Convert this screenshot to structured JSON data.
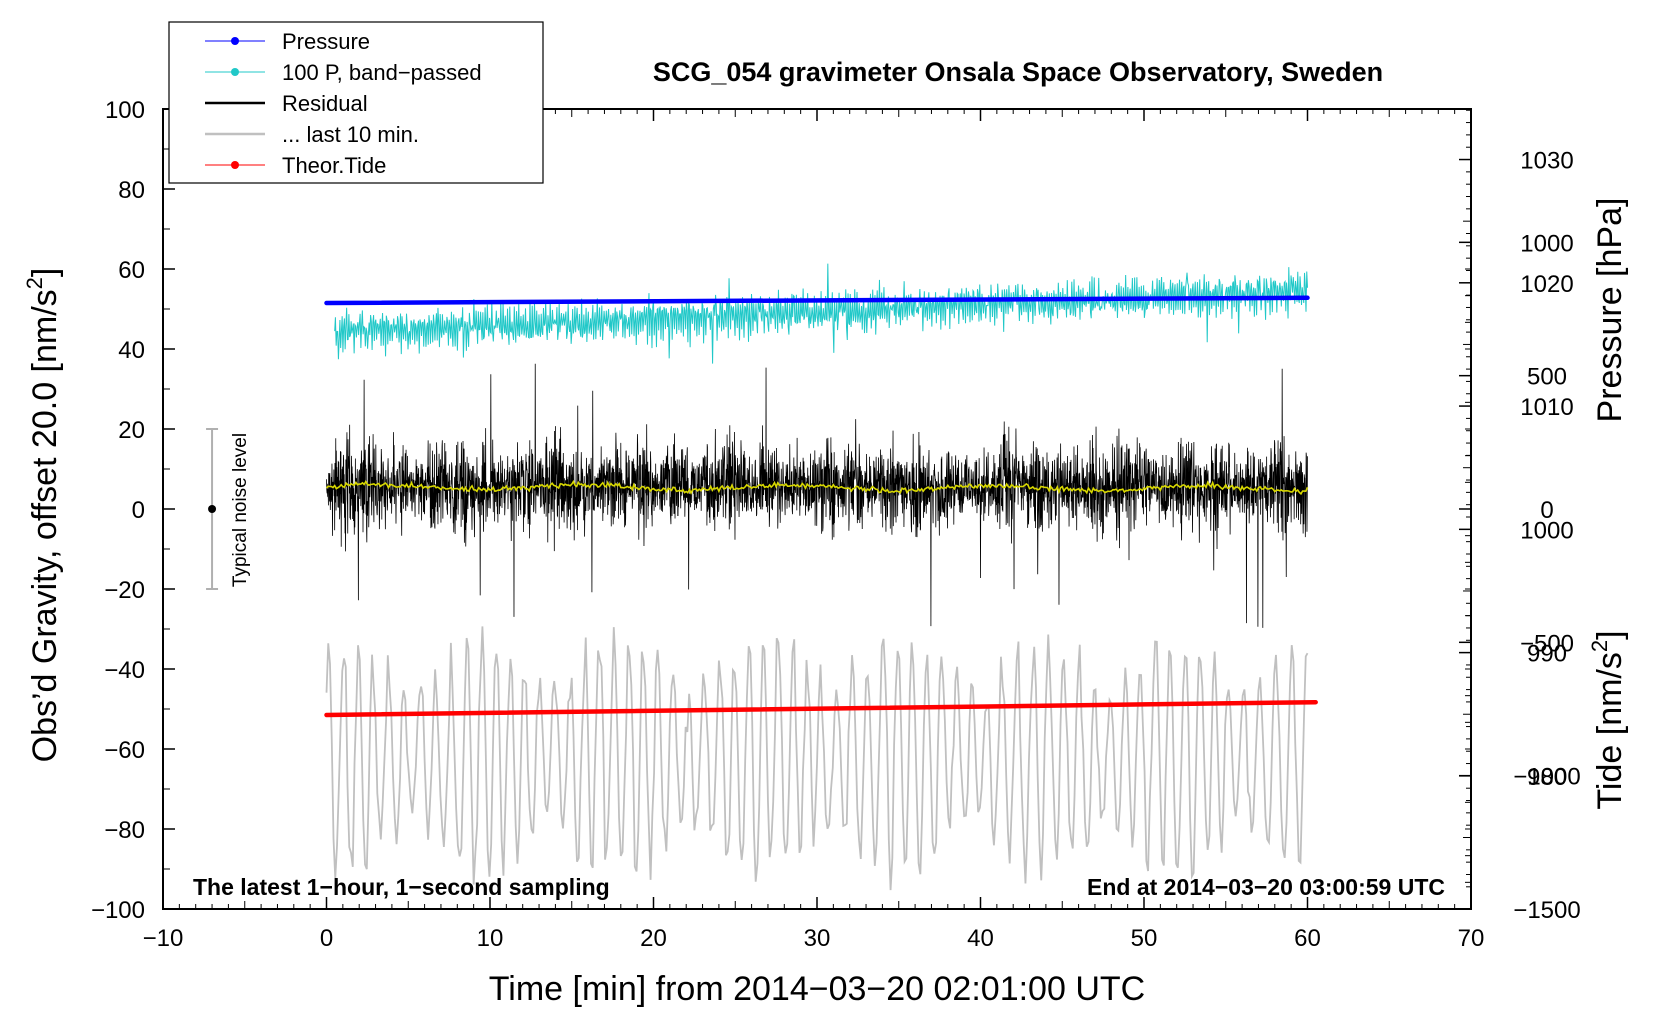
{
  "chart_data": {
    "type": "line",
    "title": "SCG_054 gravimeter Onsala Space Observatory, Sweden",
    "xlabel": "Time [min] from 2014−03−20 02:01:00 UTC",
    "ylabel_left_prefix": "Obs’d Gravity, offset 20.0 [nm/s",
    "ylabel_left_suffix": "]",
    "ylabel_right_top": "Pressure [hPa]",
    "ylabel_right_bottom_prefix": "Tide [nm/s",
    "ylabel_right_bottom_suffix": "]",
    "superscript": "2",
    "xlim": [
      -10,
      70
    ],
    "ylim": [
      -100,
      100
    ],
    "pressure_axis_range": [
      969.2,
      1034.1
    ],
    "tide_axis_range": [
      -1500,
      1500
    ],
    "x_ticks": [
      {
        "v": -10,
        "t": "−10"
      },
      {
        "v": 0,
        "t": "0"
      },
      {
        "v": 10,
        "t": "10"
      },
      {
        "v": 20,
        "t": "20"
      },
      {
        "v": 30,
        "t": "30"
      },
      {
        "v": 40,
        "t": "40"
      },
      {
        "v": 50,
        "t": "50"
      },
      {
        "v": 60,
        "t": "60"
      },
      {
        "v": 70,
        "t": "70"
      }
    ],
    "y_ticks": [
      {
        "v": 100,
        "t": "100"
      },
      {
        "v": 80,
        "t": "80"
      },
      {
        "v": 60,
        "t": "60"
      },
      {
        "v": 40,
        "t": "40"
      },
      {
        "v": 20,
        "t": "20"
      },
      {
        "v": 0,
        "t": "0"
      },
      {
        "v": -20,
        "t": "−20"
      },
      {
        "v": -40,
        "t": "−40"
      },
      {
        "v": -60,
        "t": "−60"
      },
      {
        "v": -80,
        "t": "−80"
      },
      {
        "v": -100,
        "t": "−100"
      }
    ],
    "pressure_ticks": [
      {
        "v": 1030,
        "t": "1030"
      },
      {
        "v": 1020,
        "t": "1020"
      },
      {
        "v": 1010,
        "t": "1010"
      },
      {
        "v": 1000,
        "t": "1000"
      },
      {
        "v": 990,
        "t": "990"
      },
      {
        "v": 980,
        "t": "980"
      }
    ],
    "tide_ticks": [
      {
        "v": 1000,
        "t": "1000"
      },
      {
        "v": 500,
        "t": "500"
      },
      {
        "v": 0,
        "t": "0"
      },
      {
        "v": -500,
        "t": "−500"
      },
      {
        "v": -1000,
        "t": "−1000"
      },
      {
        "v": -1500,
        "t": "−1500"
      }
    ],
    "annotation_left": "The latest 1−hour, 1−second sampling",
    "annotation_right": "End at 2014−03−20 03:00:59 UTC",
    "noise_label": "Typical noise level",
    "noise_bar": {
      "x": -7,
      "y": 0,
      "low": -20,
      "high": 20
    },
    "legend_position": "top-left",
    "legend": [
      {
        "label": "Pressure",
        "color": "#0000ff",
        "marker": true
      },
      {
        "label": "100 P, band−passed",
        "color": "#20c8c8",
        "marker": true
      },
      {
        "label": "Residual",
        "color": "#000000",
        "marker": false
      },
      {
        "label": "... last 10 min.",
        "color": "#c0c0c0",
        "marker": false
      },
      {
        "label": "Theor.Tide",
        "color": "#ff0000",
        "marker": true
      }
    ],
    "series": [
      {
        "name": "Pressure",
        "axis": "left_equivalent",
        "color": "#0000ff",
        "x": [
          0,
          60
        ],
        "y": [
          51.5,
          52.8
        ]
      },
      {
        "name": "Theor.Tide",
        "axis": "left_equivalent",
        "color": "#ff0000",
        "x": [
          0,
          60.5
        ],
        "y": [
          -51.5,
          -48.3
        ]
      },
      {
        "name": "100 P, band−passed",
        "color": "#20c8c8",
        "x_range": [
          0.5,
          60
        ],
        "mean_start": 44,
        "mean_end": 54.5,
        "amplitude": 4
      },
      {
        "name": "Residual",
        "color": "#000000",
        "x_range": [
          0,
          60
        ],
        "mean": 5.5,
        "amplitude_range": [
          -35,
          40
        ]
      },
      {
        "name": "Residual smoothed",
        "color": "#d8d800",
        "x_range": [
          0,
          60
        ],
        "mean": 5.5
      },
      {
        "name": "... last 10 min.",
        "color": "#c0c0c0",
        "x_range": [
          0,
          60
        ],
        "mean": -62,
        "amplitude_range": [
          -100,
          -23
        ]
      }
    ]
  }
}
